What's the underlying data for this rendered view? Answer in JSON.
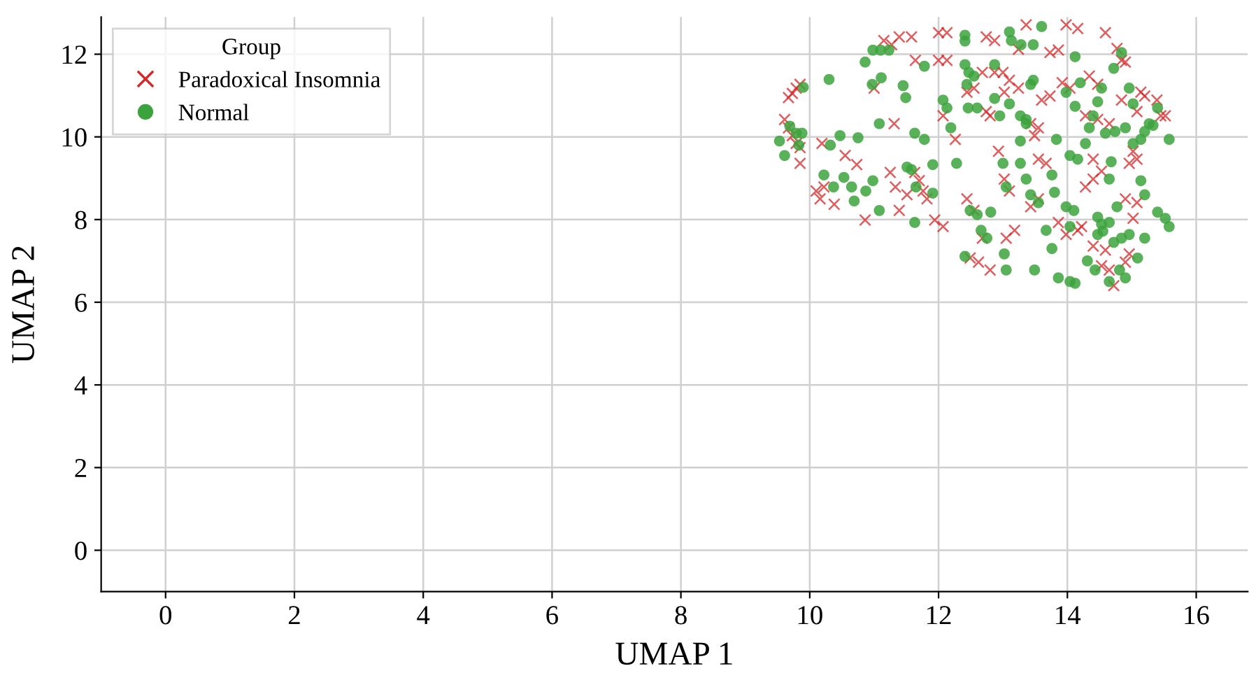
{
  "chart_data": {
    "type": "scatter",
    "xlabel": "UMAP 1",
    "ylabel": "UMAP 2",
    "legend_title": "Group",
    "legend": "top left",
    "grid": true,
    "xlim": [
      -1,
      16.8
    ],
    "ylim": [
      -1,
      12.9
    ],
    "xticks": [
      0,
      2,
      4,
      6,
      8,
      10,
      12,
      14,
      16
    ],
    "yticks": [
      0,
      2,
      4,
      6,
      8,
      10,
      12
    ],
    "series": [
      {
        "name": "Paradoxical Insomnia",
        "color": "#d62728",
        "marker": "cross",
        "x": [
          9.61,
          9.67,
          9.73,
          9.79,
          9.85,
          9.73,
          9.79,
          9.85,
          9.67,
          9.85,
          10.1,
          10.16,
          10.22,
          10.19,
          10.38,
          10.55,
          10.73,
          10.86,
          11.15,
          11.27,
          11.39,
          11.58,
          11.64,
          11.0,
          11.31,
          11.25,
          11.33,
          11.51,
          11.39,
          11.63,
          11.7,
          11.76,
          11.82,
          11.94,
          12.07,
          12.0,
          12.13,
          12.0,
          12.13,
          12.07,
          12.26,
          12.44,
          12.49,
          12.62,
          12.8,
          12.55,
          12.68,
          12.44,
          12.55,
          12.68,
          12.74,
          12.87,
          12.74,
          12.8,
          12.87,
          13.0,
          12.93,
          13.02,
          13.1,
          13.05,
          13.18,
          13.24,
          13.36,
          13.1,
          13.24,
          13.02,
          13.49,
          13.55,
          13.43,
          13.55,
          13.67,
          13.43,
          13.55,
          13.6,
          13.73,
          13.73,
          13.86,
          13.98,
          14.16,
          13.92,
          14.04,
          13.86,
          13.98,
          14.16,
          14.22,
          14.28,
          14.4,
          14.53,
          14.4,
          14.28,
          14.47,
          14.65,
          14.47,
          14.34,
          14.59,
          14.77,
          14.84,
          14.9,
          14.53,
          14.65,
          14.72,
          14.4,
          14.59,
          14.9,
          14.96,
          15.02,
          15.08,
          14.96,
          15.14,
          15.2,
          15.39,
          15.45,
          15.52,
          14.9,
          15.02,
          15.08,
          14.84,
          15.08
        ],
        "values": [
          10.42,
          10.22,
          10.03,
          9.84,
          9.74,
          11.05,
          11.18,
          11.27,
          10.95,
          9.36,
          8.69,
          8.5,
          8.79,
          9.84,
          8.37,
          9.55,
          9.33,
          7.99,
          12.33,
          12.23,
          12.42,
          12.42,
          11.85,
          11.18,
          10.32,
          9.14,
          8.79,
          8.6,
          8.22,
          9.14,
          8.94,
          8.69,
          8.5,
          7.99,
          7.83,
          12.52,
          12.52,
          11.85,
          11.85,
          10.51,
          9.94,
          8.5,
          7.07,
          6.97,
          6.78,
          8.22,
          7.55,
          11.08,
          11.18,
          11.56,
          12.42,
          12.33,
          10.61,
          10.51,
          11.56,
          11.56,
          9.65,
          8.98,
          8.69,
          7.55,
          7.74,
          12.12,
          12.71,
          11.37,
          11.18,
          11.08,
          10.03,
          10.22,
          10.32,
          9.46,
          9.36,
          8.31,
          8.5,
          10.89,
          10.99,
          12.04,
          12.1,
          12.71,
          12.62,
          11.31,
          11.18,
          7.93,
          7.64,
          7.74,
          7.83,
          8.79,
          8.98,
          9.17,
          9.46,
          10.51,
          10.42,
          10.32,
          11.27,
          11.47,
          12.52,
          12.14,
          11.85,
          11.81,
          6.88,
          6.78,
          6.4,
          7.36,
          7.26,
          6.97,
          7.17,
          9.65,
          9.46,
          9.36,
          11.08,
          10.99,
          10.89,
          10.51,
          10.51,
          8.5,
          8.03,
          8.41,
          10.89,
          10.61
        ]
      },
      {
        "name": "Normal",
        "color": "#3ca33c",
        "marker": "circle",
        "x": [
          9.53,
          9.61,
          9.69,
          9.79,
          9.88,
          9.83,
          9.9,
          10.3,
          10.32,
          10.47,
          10.22,
          10.37,
          10.53,
          10.65,
          10.75,
          10.69,
          10.87,
          10.98,
          11.08,
          10.86,
          10.98,
          11.1,
          11.23,
          10.97,
          11.11,
          11.08,
          11.45,
          11.49,
          11.58,
          11.51,
          11.63,
          11.65,
          11.63,
          11.78,
          11.78,
          11.91,
          11.91,
          12.07,
          12.13,
          12.19,
          12.28,
          12.41,
          12.41,
          12.41,
          12.47,
          12.55,
          12.44,
          12.46,
          12.6,
          12.49,
          12.41,
          12.6,
          12.66,
          12.75,
          12.81,
          12.87,
          12.95,
          12.87,
          13.0,
          13.05,
          13.02,
          13.05,
          13.1,
          13.13,
          13.28,
          13.47,
          13.6,
          13.1,
          13.27,
          13.36,
          13.27,
          13.43,
          13.47,
          13.36,
          13.27,
          13.36,
          13.43,
          13.55,
          13.49,
          13.67,
          13.76,
          13.76,
          13.8,
          13.83,
          13.98,
          14.04,
          14.1,
          13.86,
          14.04,
          14.12,
          13.98,
          14.12,
          14.2,
          14.12,
          14.04,
          14.16,
          14.28,
          14.34,
          14.4,
          14.47,
          14.53,
          14.47,
          14.53,
          14.55,
          14.47,
          14.31,
          14.43,
          14.65,
          14.81,
          14.9,
          14.72,
          14.84,
          14.96,
          14.65,
          14.77,
          14.65,
          14.68,
          14.59,
          14.74,
          14.9,
          14.72,
          14.84,
          14.96,
          15.02,
          15.14,
          15.2,
          15.27,
          15.33,
          15.14,
          15.2,
          15.09,
          15.2,
          15.4,
          15.52,
          15.58,
          15.58,
          15.4,
          15.02
        ],
        "values": [
          9.9,
          9.55,
          10.26,
          10.09,
          10.09,
          9.8,
          11.2,
          11.39,
          9.8,
          10.03,
          9.08,
          8.79,
          9.02,
          8.79,
          9.98,
          8.45,
          8.69,
          8.94,
          8.22,
          11.81,
          12.1,
          12.1,
          12.1,
          11.27,
          11.43,
          10.32,
          11.24,
          10.95,
          9.21,
          9.27,
          10.09,
          8.79,
          7.93,
          11.71,
          9.94,
          8.64,
          9.33,
          10.89,
          10.7,
          10.22,
          9.36,
          12.46,
          12.32,
          11.75,
          11.56,
          11.47,
          11.27,
          10.7,
          10.7,
          8.22,
          7.11,
          8.12,
          7.74,
          7.55,
          8.18,
          10.93,
          10.51,
          11.75,
          9.36,
          8.79,
          7.17,
          6.78,
          12.54,
          12.33,
          12.23,
          12.23,
          12.67,
          10.8,
          10.51,
          10.42,
          9.9,
          11.27,
          11.37,
          10.32,
          9.36,
          8.98,
          8.6,
          8.41,
          6.78,
          7.74,
          7.3,
          9.08,
          8.66,
          9.94,
          8.31,
          7.83,
          8.22,
          6.59,
          6.5,
          6.46,
          11.08,
          10.74,
          11.31,
          11.94,
          9.55,
          9.46,
          9.84,
          10.22,
          10.51,
          10.85,
          11.18,
          8.06,
          7.89,
          7.72,
          7.64,
          7.0,
          6.78,
          6.5,
          6.78,
          6.59,
          7.45,
          7.55,
          7.64,
          7.93,
          8.31,
          8.98,
          9.4,
          10.09,
          10.13,
          10.22,
          11.66,
          12.04,
          11.18,
          9.84,
          9.94,
          10.13,
          10.32,
          10.28,
          8.94,
          8.6,
          7.07,
          7.55,
          8.18,
          8.03,
          7.83,
          9.94,
          10.7,
          10.8
        ]
      }
    ]
  }
}
